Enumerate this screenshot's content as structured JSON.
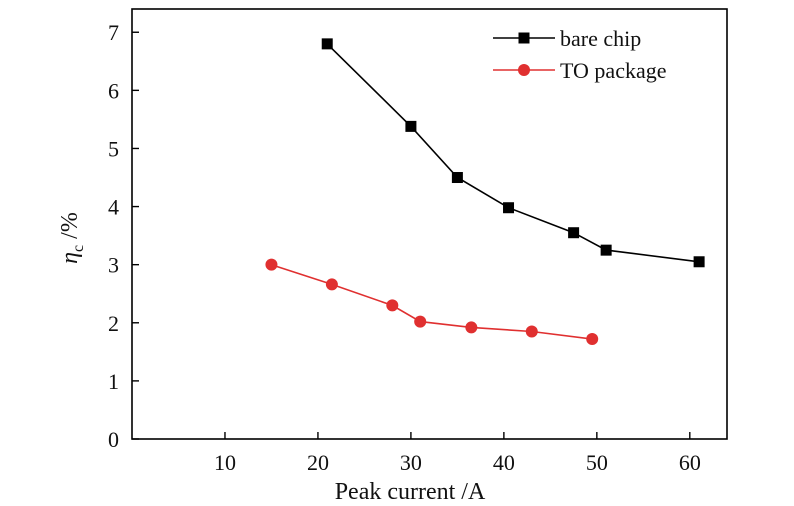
{
  "chart_data": {
    "type": "line",
    "xlabel": "Peak current /A",
    "ylabel_symbol": "η",
    "ylabel_subscript": "c",
    "ylabel_unit": " /%",
    "xlim": [
      0,
      64
    ],
    "ylim": [
      0,
      7.4
    ],
    "xticks": [
      10,
      20,
      30,
      40,
      50,
      60
    ],
    "yticks": [
      0,
      1,
      2,
      3,
      4,
      5,
      6,
      7
    ],
    "grid": false,
    "legend_position": "top-right",
    "series": [
      {
        "name": "bare chip",
        "color": "#000000",
        "marker": "square",
        "x": [
          21,
          30,
          35,
          40.5,
          47.5,
          51,
          61
        ],
        "y": [
          6.8,
          5.38,
          4.5,
          3.98,
          3.55,
          3.25,
          3.05
        ]
      },
      {
        "name": "TO package",
        "color": "#e03030",
        "marker": "circle",
        "x": [
          15,
          21.5,
          28,
          31,
          36.5,
          43,
          49.5
        ],
        "y": [
          3.0,
          2.66,
          2.3,
          2.02,
          1.92,
          1.85,
          1.72
        ]
      }
    ]
  }
}
